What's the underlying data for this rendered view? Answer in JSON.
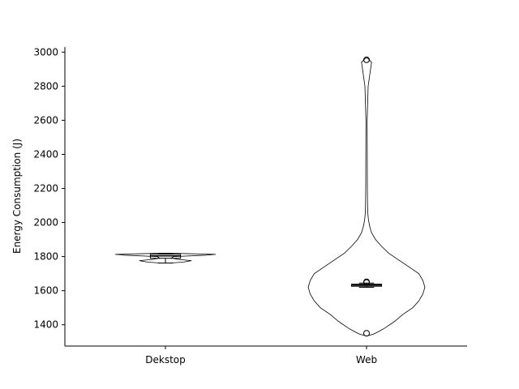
{
  "chart_data": {
    "type": "violin",
    "title": "",
    "xlabel": "",
    "ylabel": "Energy Consumption (J)",
    "categories": [
      "Dekstop",
      "Web"
    ],
    "ylim": [
      1275,
      3030
    ],
    "yticks": [
      1400,
      1600,
      1800,
      2000,
      2200,
      2400,
      2600,
      2800,
      3000
    ],
    "grid": false,
    "groups": [
      {
        "name": "Dekstop",
        "violin": {
          "y": [
            1762,
            1768,
            1776,
            1784,
            1792,
            1800,
            1808,
            1813,
            1817,
            1820
          ],
          "half_width": [
            0.02,
            0.09,
            0.13,
            0.06,
            0.03,
            0.04,
            0.2,
            0.25,
            0.12,
            0.02
          ]
        },
        "box": {
          "min": 1762,
          "q1": 1790,
          "median": 1804,
          "q3": 1814,
          "max": 1818
        },
        "outliers": []
      },
      {
        "name": "Web",
        "violin": {
          "y": [
            1335,
            1345,
            1360,
            1380,
            1420,
            1460,
            1500,
            1540,
            1580,
            1620,
            1660,
            1700,
            1740,
            1780,
            1820,
            1860,
            1900,
            1940,
            1980,
            2020,
            2060,
            2100,
            2200,
            2400,
            2600,
            2800,
            2900,
            2940,
            2965
          ],
          "half_width": [
            0.005,
            0.035,
            0.06,
            0.09,
            0.14,
            0.18,
            0.23,
            0.26,
            0.28,
            0.29,
            0.28,
            0.26,
            0.21,
            0.16,
            0.11,
            0.075,
            0.045,
            0.025,
            0.015,
            0.009,
            0.006,
            0.005,
            0.004,
            0.0035,
            0.003,
            0.008,
            0.02,
            0.025,
            0.005
          ]
        },
        "box": {
          "min": 1620,
          "q1": 1626,
          "median": 1633,
          "q3": 1638,
          "max": 1645
        },
        "outliers": [
          2955,
          1652,
          1648,
          1350
        ]
      }
    ]
  }
}
